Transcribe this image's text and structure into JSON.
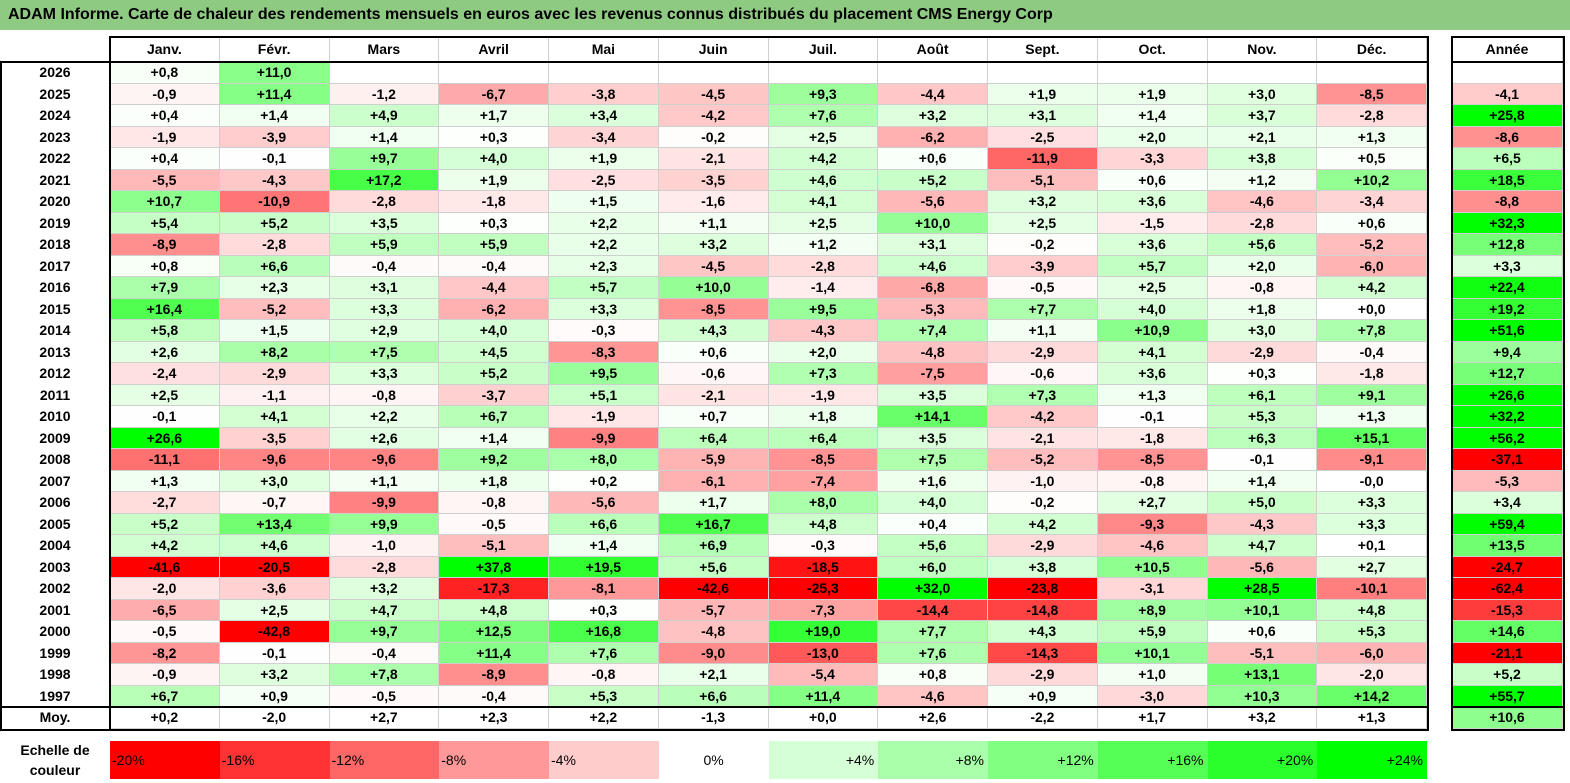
{
  "title": "ADAM Informe. Carte de chaleur des rendements mensuels en euros avec les revenus connus distribués du placement CMS Energy Corp",
  "chart_data": {
    "type": "heatmap",
    "title": "ADAM Informe. Carte de chaleur des rendements mensuels en euros avec les revenus connus distribués du placement CMS Energy Corp",
    "columns": [
      "Janv.",
      "Févr.",
      "Mars",
      "Avril",
      "Mai",
      "Juin",
      "Juil.",
      "Août",
      "Sept.",
      "Oct.",
      "Nov.",
      "Déc."
    ],
    "year_column_label": "Année",
    "average_label": "Moy.",
    "rows": [
      {
        "year": "2026",
        "months": [
          "+0,8",
          "+11,0",
          "",
          "",
          "",
          "",
          "",
          "",
          "",
          "",
          "",
          ""
        ],
        "annual": ""
      },
      {
        "year": "2025",
        "months": [
          "-0,9",
          "+11,4",
          "-1,2",
          "-6,7",
          "-3,8",
          "-4,5",
          "+9,3",
          "-4,4",
          "+1,9",
          "+1,9",
          "+3,0",
          "-8,5"
        ],
        "annual": "-4,1"
      },
      {
        "year": "2024",
        "months": [
          "+0,4",
          "+1,4",
          "+4,9",
          "+1,7",
          "+3,4",
          "-4,2",
          "+7,6",
          "+3,2",
          "+3,1",
          "+1,4",
          "+3,7",
          "-2,8"
        ],
        "annual": "+25,8"
      },
      {
        "year": "2023",
        "months": [
          "-1,9",
          "-3,9",
          "+1,4",
          "+0,3",
          "-3,4",
          "-0,2",
          "+2,5",
          "-6,2",
          "-2,5",
          "+2,0",
          "+2,1",
          "+1,3"
        ],
        "annual": "-8,6"
      },
      {
        "year": "2022",
        "months": [
          "+0,4",
          "-0,1",
          "+9,7",
          "+4,0",
          "+1,9",
          "-2,1",
          "+4,2",
          "+0,6",
          "-11,9",
          "-3,3",
          "+3,8",
          "+0,5"
        ],
        "annual": "+6,5"
      },
      {
        "year": "2021",
        "months": [
          "-5,5",
          "-4,3",
          "+17,2",
          "+1,9",
          "-2,5",
          "-3,5",
          "+4,6",
          "+5,2",
          "-5,1",
          "+0,6",
          "+1,2",
          "+10,2"
        ],
        "annual": "+18,5"
      },
      {
        "year": "2020",
        "months": [
          "+10,7",
          "-10,9",
          "-2,8",
          "-1,8",
          "+1,5",
          "-1,6",
          "+4,1",
          "-5,6",
          "+3,2",
          "+3,6",
          "-4,6",
          "-3,4"
        ],
        "annual": "-8,8"
      },
      {
        "year": "2019",
        "months": [
          "+5,4",
          "+5,2",
          "+3,5",
          "+0,3",
          "+2,2",
          "+1,1",
          "+2,5",
          "+10,0",
          "+2,5",
          "-1,5",
          "-2,8",
          "+0,6"
        ],
        "annual": "+32,3"
      },
      {
        "year": "2018",
        "months": [
          "-8,9",
          "-2,8",
          "+5,9",
          "+5,9",
          "+2,2",
          "+3,2",
          "+1,2",
          "+3,1",
          "-0,2",
          "+3,6",
          "+5,6",
          "-5,2"
        ],
        "annual": "+12,8"
      },
      {
        "year": "2017",
        "months": [
          "+0,8",
          "+6,6",
          "-0,4",
          "-0,4",
          "+2,3",
          "-4,5",
          "-2,8",
          "+4,6",
          "-3,9",
          "+5,7",
          "+2,0",
          "-6,0"
        ],
        "annual": "+3,3"
      },
      {
        "year": "2016",
        "months": [
          "+7,9",
          "+2,3",
          "+3,1",
          "-4,4",
          "+5,7",
          "+10,0",
          "-1,4",
          "-6,8",
          "-0,5",
          "+2,5",
          "-0,8",
          "+4,2"
        ],
        "annual": "+22,4"
      },
      {
        "year": "2015",
        "months": [
          "+16,4",
          "-5,2",
          "+3,3",
          "-6,2",
          "+3,3",
          "-8,5",
          "+9,5",
          "-5,3",
          "+7,7",
          "+4,0",
          "+1,8",
          "+0,0"
        ],
        "annual": "+19,2"
      },
      {
        "year": "2014",
        "months": [
          "+5,8",
          "+1,5",
          "+2,9",
          "+4,0",
          "-0,3",
          "+4,3",
          "-4,3",
          "+7,4",
          "+1,1",
          "+10,9",
          "+3,0",
          "+7,8"
        ],
        "annual": "+51,6"
      },
      {
        "year": "2013",
        "months": [
          "+2,6",
          "+8,2",
          "+7,5",
          "+4,5",
          "-8,3",
          "+0,6",
          "+2,0",
          "-4,8",
          "-2,9",
          "+4,1",
          "-2,9",
          "-0,4"
        ],
        "annual": "+9,4"
      },
      {
        "year": "2012",
        "months": [
          "-2,4",
          "-2,9",
          "+3,3",
          "+5,2",
          "+9,5",
          "-0,6",
          "+7,3",
          "-7,5",
          "-0,6",
          "+3,6",
          "+0,3",
          "-1,8"
        ],
        "annual": "+12,7"
      },
      {
        "year": "2011",
        "months": [
          "+2,5",
          "-1,1",
          "-0,8",
          "-3,7",
          "+5,1",
          "-2,1",
          "-1,9",
          "+3,5",
          "+7,3",
          "+1,3",
          "+6,1",
          "+9,1"
        ],
        "annual": "+26,6"
      },
      {
        "year": "2010",
        "months": [
          "-0,1",
          "+4,1",
          "+2,2",
          "+6,7",
          "-1,9",
          "+0,7",
          "+1,8",
          "+14,1",
          "-4,2",
          "-0,1",
          "+5,3",
          "+1,3"
        ],
        "annual": "+32,2"
      },
      {
        "year": "2009",
        "months": [
          "+26,6",
          "-3,5",
          "+2,6",
          "+1,4",
          "-9,9",
          "+6,4",
          "+6,4",
          "+3,5",
          "-2,1",
          "-1,8",
          "+6,3",
          "+15,1"
        ],
        "annual": "+56,2"
      },
      {
        "year": "2008",
        "months": [
          "-11,1",
          "-9,6",
          "-9,6",
          "+9,2",
          "+8,0",
          "-5,9",
          "-8,5",
          "+7,5",
          "-5,2",
          "-8,5",
          "-0,1",
          "-9,1"
        ],
        "annual": "-37,1"
      },
      {
        "year": "2007",
        "months": [
          "+1,3",
          "+3,0",
          "+1,1",
          "+1,8",
          "+0,2",
          "-6,1",
          "-7,4",
          "+1,6",
          "-1,0",
          "-0,8",
          "+1,4",
          "-0,0"
        ],
        "annual": "-5,3"
      },
      {
        "year": "2006",
        "months": [
          "-2,7",
          "-0,7",
          "-9,9",
          "-0,8",
          "-5,6",
          "+1,7",
          "+8,0",
          "+4,0",
          "-0,2",
          "+2,7",
          "+5,0",
          "+3,3"
        ],
        "annual": "+3,4"
      },
      {
        "year": "2005",
        "months": [
          "+5,2",
          "+13,4",
          "+9,9",
          "-0,5",
          "+6,6",
          "+16,7",
          "+4,8",
          "+0,4",
          "+4,2",
          "-9,3",
          "-4,3",
          "+3,3"
        ],
        "annual": "+59,4"
      },
      {
        "year": "2004",
        "months": [
          "+4,2",
          "+4,6",
          "-1,0",
          "-5,1",
          "+1,4",
          "+6,9",
          "-0,3",
          "+5,6",
          "-2,9",
          "-4,6",
          "+4,7",
          "+0,1"
        ],
        "annual": "+13,5"
      },
      {
        "year": "2003",
        "months": [
          "-41,6",
          "-20,5",
          "-2,8",
          "+37,8",
          "+19,5",
          "+5,6",
          "-18,5",
          "+6,0",
          "+3,8",
          "+10,5",
          "-5,6",
          "+2,7"
        ],
        "annual": "-24,7"
      },
      {
        "year": "2002",
        "months": [
          "-2,0",
          "-3,6",
          "+3,2",
          "-17,3",
          "-8,1",
          "-42,6",
          "-25,3",
          "+32,0",
          "-23,8",
          "-3,1",
          "+28,5",
          "-10,1"
        ],
        "annual": "-62,4"
      },
      {
        "year": "2001",
        "months": [
          "-6,5",
          "+2,5",
          "+4,7",
          "+4,8",
          "+0,3",
          "-5,7",
          "-7,3",
          "-14,4",
          "-14,8",
          "+8,9",
          "+10,1",
          "+4,8"
        ],
        "annual": "-15,3"
      },
      {
        "year": "2000",
        "months": [
          "-0,5",
          "-42,8",
          "+9,7",
          "+12,5",
          "+16,8",
          "-4,8",
          "+19,0",
          "+7,7",
          "+4,3",
          "+5,9",
          "+0,6",
          "+5,3"
        ],
        "annual": "+14,6"
      },
      {
        "year": "1999",
        "months": [
          "-8,2",
          "-0,1",
          "-0,4",
          "+11,4",
          "+7,6",
          "-9,0",
          "-13,0",
          "+7,6",
          "-14,3",
          "+10,1",
          "-5,1",
          "-6,0"
        ],
        "annual": "-21,1"
      },
      {
        "year": "1998",
        "months": [
          "-0,9",
          "+3,2",
          "+7,8",
          "-8,9",
          "-0,8",
          "+2,1",
          "-5,4",
          "+0,8",
          "-2,9",
          "+1,0",
          "+13,1",
          "-2,0"
        ],
        "annual": "+5,2"
      },
      {
        "year": "1997",
        "months": [
          "+6,7",
          "+0,9",
          "-0,5",
          "-0,4",
          "+5,3",
          "+6,6",
          "+11,4",
          "-4,6",
          "+0,9",
          "-3,0",
          "+10,3",
          "+14,2"
        ],
        "annual": "+55,7"
      }
    ],
    "average": {
      "months": [
        "+0,2",
        "-2,0",
        "+2,7",
        "+2,3",
        "+2,2",
        "-1,3",
        "+0,0",
        "+2,6",
        "-2,2",
        "+1,7",
        "+3,2",
        "+1,3"
      ],
      "annual": "+10,6"
    },
    "color_scale": {
      "label": "Echelle de couleur",
      "negative_color": "#ff0000",
      "neutral_color": "#ffffff",
      "positive_color": "#00ff00",
      "min": -20,
      "max": 24,
      "stops": [
        {
          "label": "-20%",
          "value": -20
        },
        {
          "label": "-16%",
          "value": -16
        },
        {
          "label": "-12%",
          "value": -12
        },
        {
          "label": "-8%",
          "value": -8
        },
        {
          "label": "-4%",
          "value": -4
        },
        {
          "label": "0%",
          "value": 0
        },
        {
          "label": "+4%",
          "value": 4
        },
        {
          "label": "+8%",
          "value": 8
        },
        {
          "label": "+12%",
          "value": 12
        },
        {
          "label": "+16%",
          "value": 16
        },
        {
          "label": "+20%",
          "value": 20
        },
        {
          "label": "+24%",
          "value": 24
        }
      ]
    }
  }
}
